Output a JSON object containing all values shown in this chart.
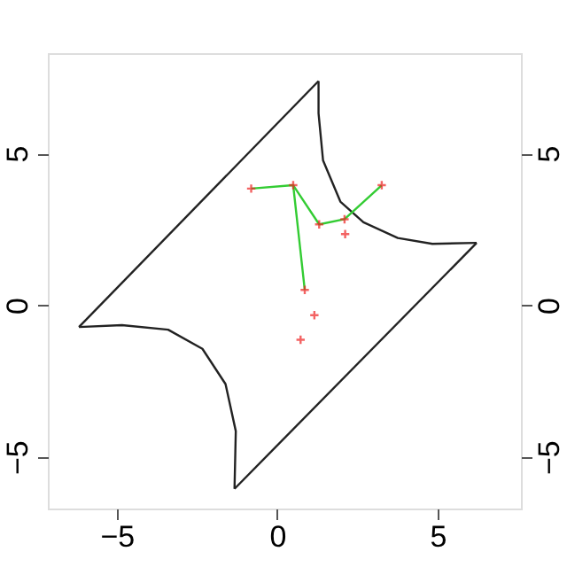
{
  "chart_data": {
    "type": "line",
    "xlim": [
      -7.15,
      7.6
    ],
    "ylim": [
      -6.7,
      8.3
    ],
    "xticks": [
      -5,
      0,
      5
    ],
    "yticks": [
      -5,
      0,
      5
    ],
    "y2lim": [
      -6.7,
      8.3
    ],
    "y2ticks": [
      -5,
      0,
      5
    ],
    "grid": false,
    "series": [
      {
        "type": "line",
        "color": "#222222",
        "marker": "none",
        "x": [
          -6.18,
          1.29
        ],
        "values": [
          -0.72,
          7.38
        ]
      },
      {
        "type": "line",
        "color": "#222222",
        "marker": "none",
        "x": [
          1.29,
          1.29,
          1.43,
          1.97,
          2.69,
          3.76,
          4.84,
          6.22
        ],
        "values": [
          7.38,
          6.32,
          4.77,
          3.41,
          2.73,
          2.21,
          2.02,
          2.05
        ]
      },
      {
        "type": "line",
        "color": "#222222",
        "marker": "none",
        "x": [
          -1.33,
          6.22
        ],
        "values": [
          -6.05,
          2.05
        ]
      },
      {
        "type": "line",
        "color": "#222222",
        "marker": "none",
        "x": [
          -6.18,
          -4.84,
          -3.4,
          -2.33,
          -1.61,
          -1.29,
          -1.33
        ],
        "values": [
          -0.72,
          -0.66,
          -0.81,
          -1.44,
          -2.6,
          -4.15,
          -6.05
        ]
      },
      {
        "type": "line",
        "color": "#33cc33",
        "marker": "none",
        "x": [
          -0.81,
          0.5,
          0.86
        ],
        "values": [
          3.84,
          3.95,
          0.5
        ]
      },
      {
        "type": "line",
        "color": "#33cc33",
        "marker": "none",
        "x": [
          0.5,
          1.31,
          2.1,
          3.26
        ],
        "values": [
          3.95,
          2.66,
          2.83,
          3.95
        ]
      },
      {
        "type": "scatter",
        "color": "#ee2222",
        "marker": "cross",
        "x": [
          -0.81,
          0.5,
          1.31,
          2.1,
          3.26,
          2.12,
          0.86,
          1.16,
          0.73
        ],
        "values": [
          3.84,
          3.95,
          2.66,
          2.83,
          3.95,
          2.34,
          0.5,
          -0.33,
          -1.14
        ]
      }
    ]
  }
}
